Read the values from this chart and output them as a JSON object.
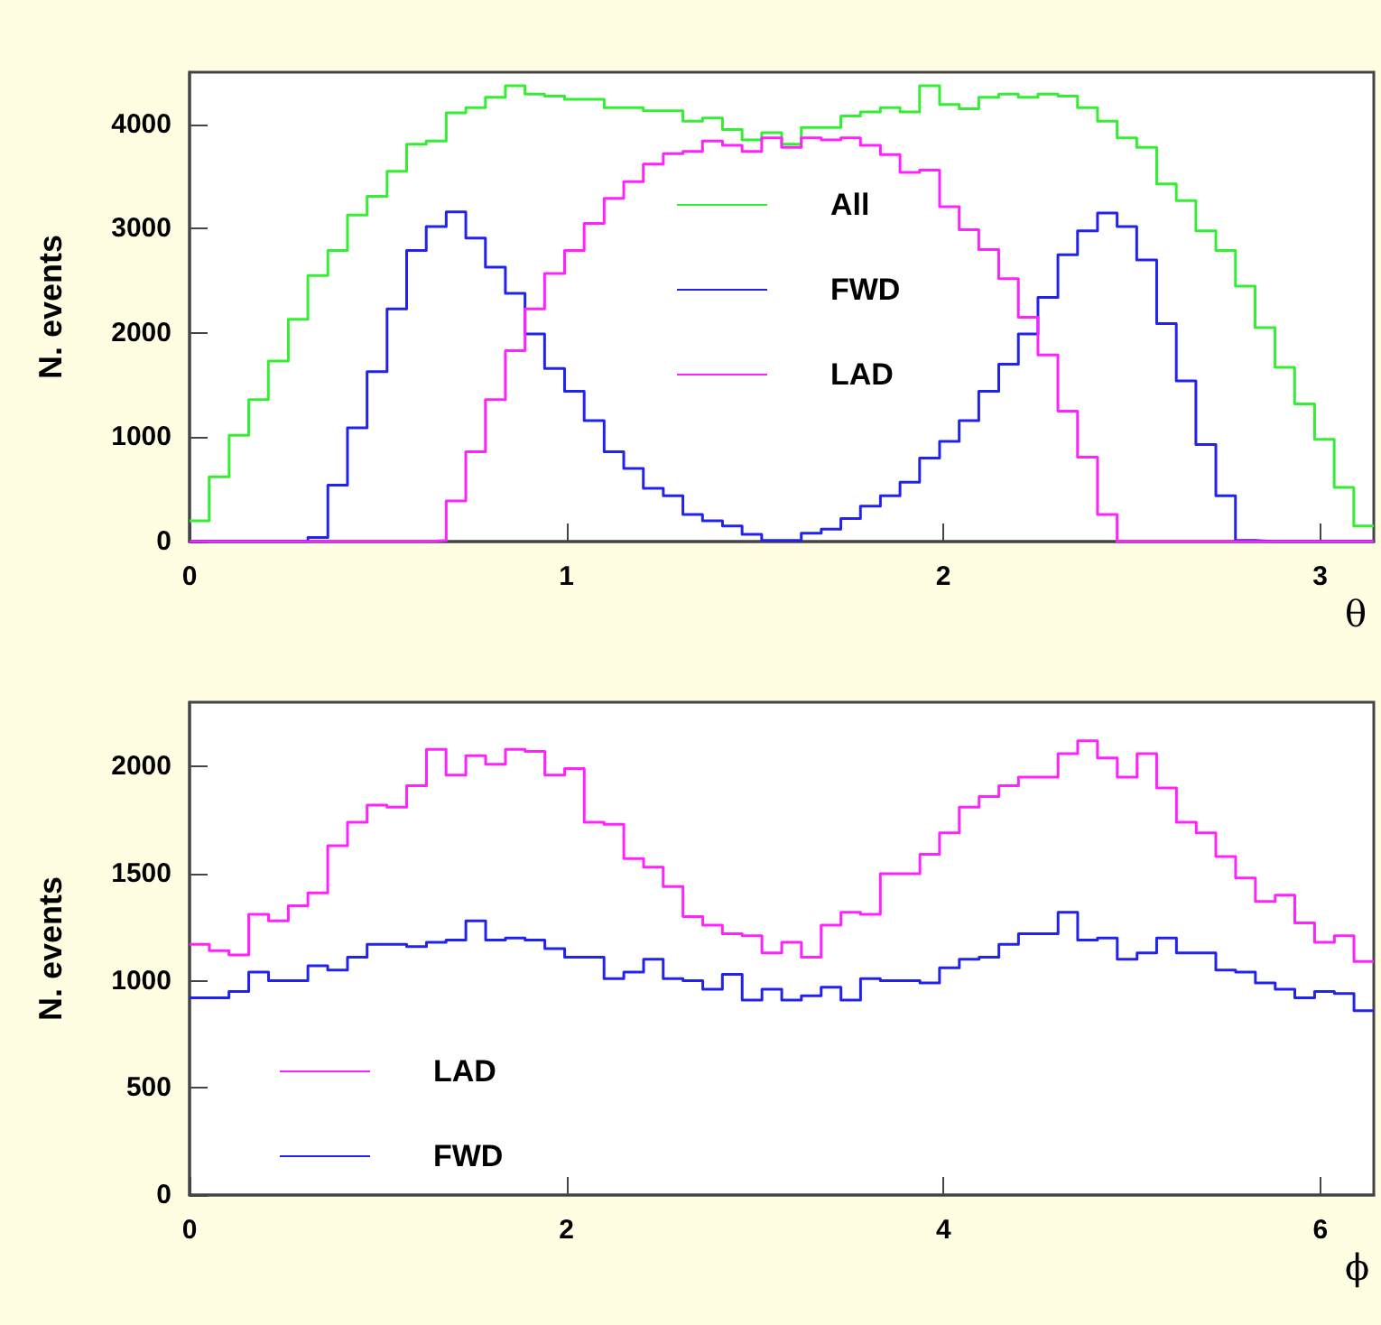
{
  "chart_data": [
    {
      "type": "histogram",
      "ylabel": "N. events",
      "xlabel": "θ",
      "xlim": [
        0,
        3.142
      ],
      "xticks": [
        0,
        1,
        2,
        3
      ],
      "ylim": [
        0,
        4500
      ],
      "yticks": [
        0,
        1000,
        2000,
        3000,
        4000
      ],
      "legend": "top",
      "grid": false,
      "bins": [
        0,
        0.052,
        0.105,
        0.157,
        0.209,
        0.262,
        0.314,
        0.367,
        0.419,
        0.471,
        0.524,
        0.576,
        0.628,
        0.681,
        0.733,
        0.785,
        0.838,
        0.89,
        0.942,
        0.995,
        1.047,
        1.1,
        1.152,
        1.204,
        1.257,
        1.309,
        1.361,
        1.414,
        1.466,
        1.518,
        1.571,
        1.623,
        1.676,
        1.728,
        1.78,
        1.833,
        1.885,
        1.937,
        1.99,
        2.042,
        2.094,
        2.147,
        2.199,
        2.251,
        2.304,
        2.356,
        2.409,
        2.461,
        2.513,
        2.566,
        2.618,
        2.67,
        2.723,
        2.775,
        2.827,
        2.88,
        2.932,
        2.985,
        3.037,
        3.089,
        3.142
      ],
      "series": [
        {
          "name": "All",
          "color": "#33ee33",
          "values": [
            200,
            620,
            1020,
            1360,
            1730,
            2130,
            2550,
            2790,
            3130,
            3310,
            3550,
            3810,
            3840,
            4110,
            4160,
            4260,
            4370,
            4290,
            4270,
            4240,
            4240,
            4160,
            4160,
            4130,
            4130,
            4030,
            4060,
            3950,
            3850,
            3920,
            3810,
            3970,
            3970,
            4080,
            4120,
            4160,
            4120,
            4370,
            4190,
            4150,
            4260,
            4290,
            4260,
            4290,
            4270,
            4160,
            4030,
            3870,
            3780,
            3430,
            3270,
            2980,
            2790,
            2450,
            2050,
            1670,
            1320,
            980,
            520,
            150
          ]
        },
        {
          "name": "FWD",
          "color": "#2222ee",
          "values": [
            0,
            0,
            0,
            0,
            0,
            0,
            40,
            540,
            1090,
            1630,
            2230,
            2790,
            3020,
            3160,
            2910,
            2630,
            2380,
            1990,
            1660,
            1440,
            1160,
            860,
            700,
            510,
            440,
            260,
            200,
            150,
            70,
            10,
            10,
            80,
            120,
            220,
            340,
            440,
            570,
            800,
            960,
            1160,
            1440,
            1700,
            1990,
            2340,
            2750,
            2980,
            3150,
            3020,
            2700,
            2090,
            1540,
            930,
            440,
            10,
            0,
            0,
            0,
            0,
            0,
            0
          ]
        },
        {
          "name": "LAD",
          "color": "#ff22ff",
          "values": [
            0,
            0,
            0,
            0,
            0,
            0,
            0,
            0,
            0,
            0,
            0,
            0,
            10,
            390,
            860,
            1360,
            1830,
            2230,
            2570,
            2790,
            3050,
            3290,
            3450,
            3620,
            3720,
            3740,
            3840,
            3800,
            3740,
            3870,
            3780,
            3870,
            3850,
            3870,
            3800,
            3710,
            3540,
            3560,
            3210,
            2990,
            2800,
            2520,
            2150,
            1790,
            1250,
            810,
            260,
            0,
            0,
            0,
            0,
            0,
            0,
            0,
            0,
            0,
            0,
            0,
            0,
            0
          ]
        }
      ]
    },
    {
      "type": "histogram",
      "ylabel": "N. events",
      "xlabel": "ϕ",
      "xlim": [
        0,
        6.283
      ],
      "xticks": [
        0,
        2,
        4,
        6
      ],
      "ylim": [
        0,
        2300
      ],
      "yticks": [
        0,
        500,
        1000,
        1500,
        2000
      ],
      "legend": "bottom left",
      "grid": false,
      "bins": [
        0,
        0.105,
        0.209,
        0.314,
        0.419,
        0.524,
        0.628,
        0.733,
        0.838,
        0.942,
        1.047,
        1.152,
        1.257,
        1.361,
        1.466,
        1.571,
        1.676,
        1.78,
        1.885,
        1.99,
        2.094,
        2.199,
        2.304,
        2.409,
        2.513,
        2.618,
        2.723,
        2.827,
        2.932,
        3.037,
        3.142,
        3.246,
        3.351,
        3.456,
        3.56,
        3.665,
        3.77,
        3.875,
        3.979,
        4.084,
        4.189,
        4.294,
        4.398,
        4.503,
        4.608,
        4.712,
        4.817,
        4.922,
        5.027,
        5.131,
        5.236,
        5.341,
        5.445,
        5.55,
        5.655,
        5.76,
        5.864,
        5.969,
        6.074,
        6.178,
        6.283
      ],
      "series": [
        {
          "name": "LAD",
          "color": "#ff22ff",
          "values": [
            1170,
            1140,
            1120,
            1310,
            1280,
            1350,
            1410,
            1630,
            1740,
            1820,
            1810,
            1910,
            2080,
            1960,
            2050,
            2010,
            2080,
            2070,
            1960,
            1990,
            1740,
            1730,
            1570,
            1530,
            1440,
            1300,
            1260,
            1220,
            1210,
            1130,
            1180,
            1110,
            1260,
            1320,
            1310,
            1500,
            1500,
            1590,
            1690,
            1810,
            1860,
            1910,
            1950,
            1950,
            2060,
            2120,
            2040,
            1950,
            2060,
            1900,
            1740,
            1690,
            1580,
            1480,
            1370,
            1400,
            1270,
            1180,
            1210,
            1090
          ]
        },
        {
          "name": "FWD",
          "color": "#2222ee",
          "values": [
            920,
            920,
            950,
            1040,
            1000,
            1000,
            1070,
            1050,
            1110,
            1170,
            1170,
            1160,
            1180,
            1190,
            1280,
            1190,
            1200,
            1190,
            1150,
            1110,
            1110,
            1010,
            1040,
            1100,
            1010,
            1000,
            960,
            1030,
            910,
            960,
            910,
            930,
            970,
            910,
            1010,
            1000,
            1000,
            990,
            1060,
            1100,
            1110,
            1170,
            1220,
            1220,
            1320,
            1190,
            1200,
            1100,
            1130,
            1200,
            1130,
            1130,
            1050,
            1040,
            990,
            960,
            920,
            950,
            940,
            860
          ]
        }
      ]
    }
  ]
}
